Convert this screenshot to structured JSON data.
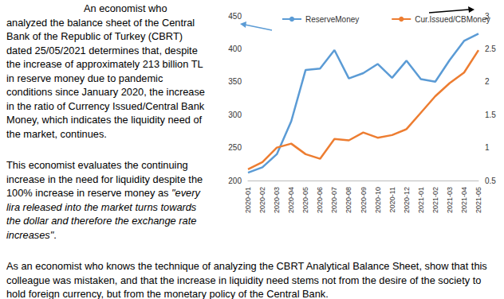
{
  "paragraphs": [
    {
      "runs": [
        {
          "text": "An economist who analyzed the balance sheet of the Central Bank of the Republic of Turkey (CBRT) dated 25/05/2021 determines that, despite the increase of approximately 213 billion TL in reserve money due to pandemic conditions since January 2020, the increase in the ratio of Currency Issued/Central Bank Money, which indicates the liquidity need of the market, continues."
        }
      ]
    },
    {
      "runs": [
        {
          "text": "This economist evaluates the continuing increase in the need for liquidity despite the 100% increase in reserve money as "
        },
        {
          "text": "\"every lira released into the market turns towards the dollar and therefore the exchange rate increases\"",
          "italic": true
        },
        {
          "text": "."
        }
      ]
    },
    {
      "runs": [
        {
          "text": "As an economist who knows the technique of analyzing the CBRT Analytical Balance Sheet, show that this colleague was mistaken, and that the increase in liquidity need stems not from the desire of the society to hold foreign currency, but from the monetary policy of the Central Bank."
        }
      ]
    }
  ],
  "chart_data": {
    "type": "line",
    "categories": [
      "2020-01",
      "2020-02",
      "2020-03",
      "2020-04",
      "2020-05",
      "2020-06",
      "2020-07",
      "2020-08",
      "2020-09",
      "2020-10",
      "2020-11",
      "2020-12",
      "2021-01",
      "2021-02",
      "2021-03",
      "2021-04",
      "2021-05"
    ],
    "series": [
      {
        "name": "ReserveMoney",
        "color": "#5b9bd5",
        "values": [
          212,
          220,
          240,
          290,
          368,
          370,
          398,
          355,
          363,
          377,
          356,
          382,
          354,
          350,
          383,
          412,
          423
        ]
      },
      {
        "name": "Cur.Issued/CBMoney",
        "color": "#ed7d31",
        "axis": "y2",
        "values": [
          0.67,
          0.78,
          1.0,
          1.06,
          0.9,
          0.83,
          1.13,
          1.11,
          1.23,
          1.15,
          1.19,
          1.28,
          1.53,
          1.78,
          1.98,
          2.14,
          2.48
        ]
      }
    ],
    "ylim": [
      200,
      450
    ],
    "yticks": [
      200,
      250,
      300,
      350,
      400,
      450
    ],
    "y2lim": [
      0.5,
      3
    ],
    "y2ticks": [
      0.5,
      1,
      1.5,
      2,
      2.5,
      3
    ],
    "grid": false,
    "legend": "top"
  }
}
